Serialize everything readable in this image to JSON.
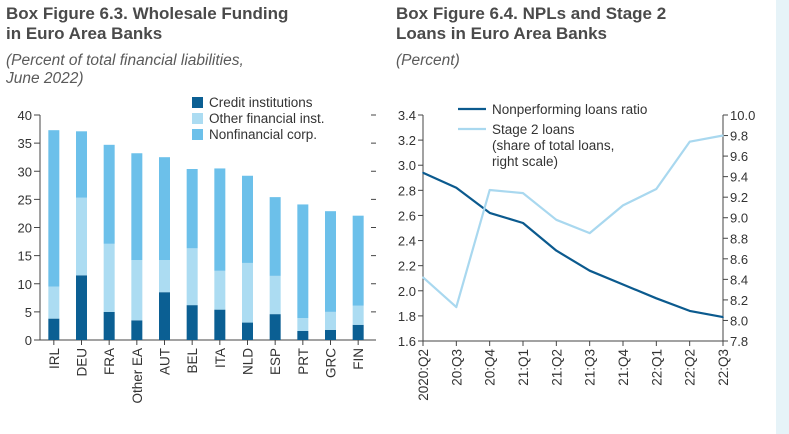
{
  "figure_left": {
    "title": "Box Figure 6.3. Wholesale Funding in Euro Area Banks",
    "title_lines": [
      "Box Figure 6.3. Wholesale Funding",
      "in Euro Area Banks"
    ],
    "subtitle_lines": [
      "(Percent of total financial liabilities,",
      "June 2022)"
    ]
  },
  "figure_right": {
    "title": "Box Figure 6.4. NPLs and Stage 2 Loans in Euro Area Banks",
    "title_lines": [
      "Box Figure 6.4. NPLs and Stage 2",
      "Loans in Euro Area Banks"
    ],
    "subtitle_lines": [
      "(Percent)"
    ]
  },
  "colors": {
    "credit": "#0b5f93",
    "other_fin": "#acdcf2",
    "nonfin": "#6cc0ea",
    "npl_line": "#0b5a8e",
    "stage2_line": "#a9d8ef",
    "axis": "#444444",
    "side_panel": "#e6f3f8"
  },
  "chart_data": [
    {
      "type": "bar",
      "stacked": true,
      "title": "Box Figure 6.3. Wholesale Funding in Euro Area Banks",
      "subtitle": "(Percent of total financial liabilities, June 2022)",
      "categories": [
        "IRL",
        "DEU",
        "FRA",
        "Other EA",
        "AUT",
        "BEL",
        "ITA",
        "NLD",
        "ESP",
        "PRT",
        "GRC",
        "FIN"
      ],
      "series": [
        {
          "name": "Credit institutions",
          "color": "#0b5f93",
          "values": [
            3.8,
            11.5,
            5.0,
            3.5,
            8.5,
            6.2,
            5.4,
            3.1,
            4.6,
            1.6,
            1.8,
            2.7
          ]
        },
        {
          "name": "Other financial inst.",
          "color": "#acdcf2",
          "values": [
            5.7,
            13.8,
            12.1,
            10.7,
            5.7,
            10.1,
            6.9,
            10.6,
            6.8,
            2.3,
            3.2,
            3.4
          ]
        },
        {
          "name": "Nonfinancial corp.",
          "color": "#6cc0ea",
          "values": [
            27.8,
            11.8,
            17.6,
            19.0,
            18.3,
            14.1,
            18.2,
            15.5,
            14.0,
            20.2,
            17.9,
            16.0
          ]
        }
      ],
      "ylim": [
        0,
        40
      ],
      "yticks": [
        "0",
        "5",
        "10",
        "15",
        "20",
        "25",
        "30",
        "35",
        "40"
      ],
      "legend": [
        "Credit institutions",
        "Other financial inst.",
        "Nonfinancial corp."
      ],
      "legend_position": "top-right"
    },
    {
      "type": "line",
      "title": "Box Figure 6.4. NPLs and Stage 2 Loans in Euro Area Banks",
      "subtitle": "(Percent)",
      "x": [
        "2020:Q2",
        "20:Q3",
        "20:Q4",
        "21:Q1",
        "21:Q2",
        "21:Q3",
        "21:Q4",
        "22:Q1",
        "22:Q2",
        "22:Q3"
      ],
      "series": [
        {
          "name": "Nonperforming loans ratio",
          "axis": "left",
          "color": "#0b5a8e",
          "values": [
            2.94,
            2.82,
            2.62,
            2.54,
            2.32,
            2.16,
            2.05,
            1.94,
            1.84,
            1.79
          ]
        },
        {
          "name": "Stage 2 loans (share of total loans, right scale)",
          "axis": "right",
          "color": "#a9d8ef",
          "values": [
            8.42,
            8.13,
            9.27,
            9.24,
            8.98,
            8.85,
            9.12,
            9.28,
            9.74,
            9.8
          ]
        }
      ],
      "legend": [
        [
          "Nonperforming loans ratio"
        ],
        [
          "Stage 2 loans",
          "(share of total loans,",
          "right scale)"
        ]
      ],
      "ylim_left": [
        1.6,
        3.4
      ],
      "yticks_left": [
        "1.6",
        "1.8",
        "2.0",
        "2.2",
        "2.4",
        "2.6",
        "2.8",
        "3.0",
        "3.2",
        "3.4"
      ],
      "ylim_right": [
        7.8,
        10.0
      ],
      "yticks_right": [
        "7.8",
        "8.0",
        "8.2",
        "8.4",
        "8.6",
        "8.8",
        "9.0",
        "9.2",
        "9.4",
        "9.6",
        "9.8",
        "10.0"
      ]
    }
  ]
}
